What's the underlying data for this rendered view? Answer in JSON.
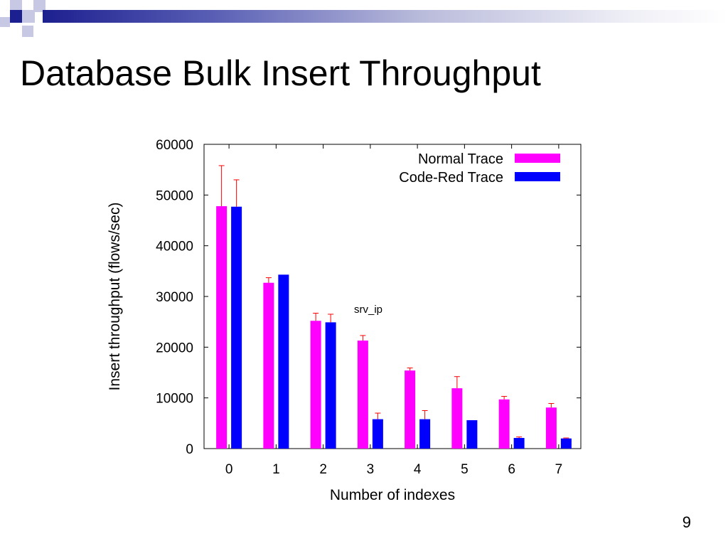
{
  "slide": {
    "title": "Database Bulk Insert Throughput",
    "page_number": "9"
  },
  "colors": {
    "normal": "#ff00ff",
    "codered": "#0000ff",
    "error_bar": "#ff0000",
    "header_dark": "#1c1f8f",
    "header_light": "#c7c9e4"
  },
  "chart_data": {
    "type": "bar",
    "title": "",
    "xlabel": "Number of indexes",
    "ylabel": "Insert throughput (flows/sec)",
    "annotation": "srv_ip",
    "categories": [
      "0",
      "1",
      "2",
      "3",
      "4",
      "5",
      "6",
      "7"
    ],
    "ylim": [
      0,
      60000
    ],
    "yticks": [
      "0",
      "10000",
      "20000",
      "30000",
      "40000",
      "50000",
      "60000"
    ],
    "legend_position": "top-right",
    "grid": false,
    "series": [
      {
        "name": "Normal Trace",
        "values": [
          47800,
          32700,
          25200,
          21300,
          15400,
          11900,
          9700,
          8100
        ],
        "errors": [
          8000,
          1000,
          1500,
          1000,
          500,
          2300,
          600,
          800
        ]
      },
      {
        "name": "Code-Red Trace",
        "values": [
          47700,
          34300,
          24900,
          5800,
          5800,
          5600,
          2100,
          2000
        ],
        "errors": [
          5300,
          0,
          1600,
          1200,
          1700,
          0,
          200,
          100
        ]
      }
    ]
  }
}
